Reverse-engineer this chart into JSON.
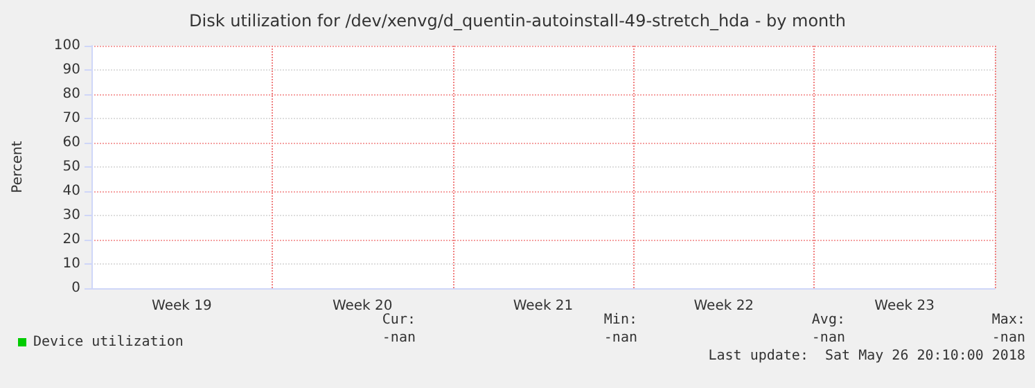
{
  "chart_data": {
    "type": "line",
    "title": "Disk utilization for /dev/xenvg/d_quentin-autoinstall-49-stretch_hda - by month",
    "ylabel": "Percent",
    "categories": [
      "Week 19",
      "Week 20",
      "Week 21",
      "Week 22",
      "Week 23"
    ],
    "series": [
      {
        "name": "Device utilization",
        "color": "#00cc00",
        "values": [
          null,
          null,
          null,
          null,
          null
        ]
      }
    ],
    "ylim": [
      0,
      100
    ],
    "yticks": [
      0,
      10,
      20,
      30,
      40,
      50,
      60,
      70,
      80,
      90,
      100
    ],
    "grid": true,
    "legend": "bottom left",
    "annotations": [
      "Cur:",
      "Min:",
      "Avg:",
      "Max:",
      "-nan",
      "-nan",
      "-nan",
      "-nan",
      "Last update:  Sat May 26 20:10:00 2018"
    ]
  }
}
